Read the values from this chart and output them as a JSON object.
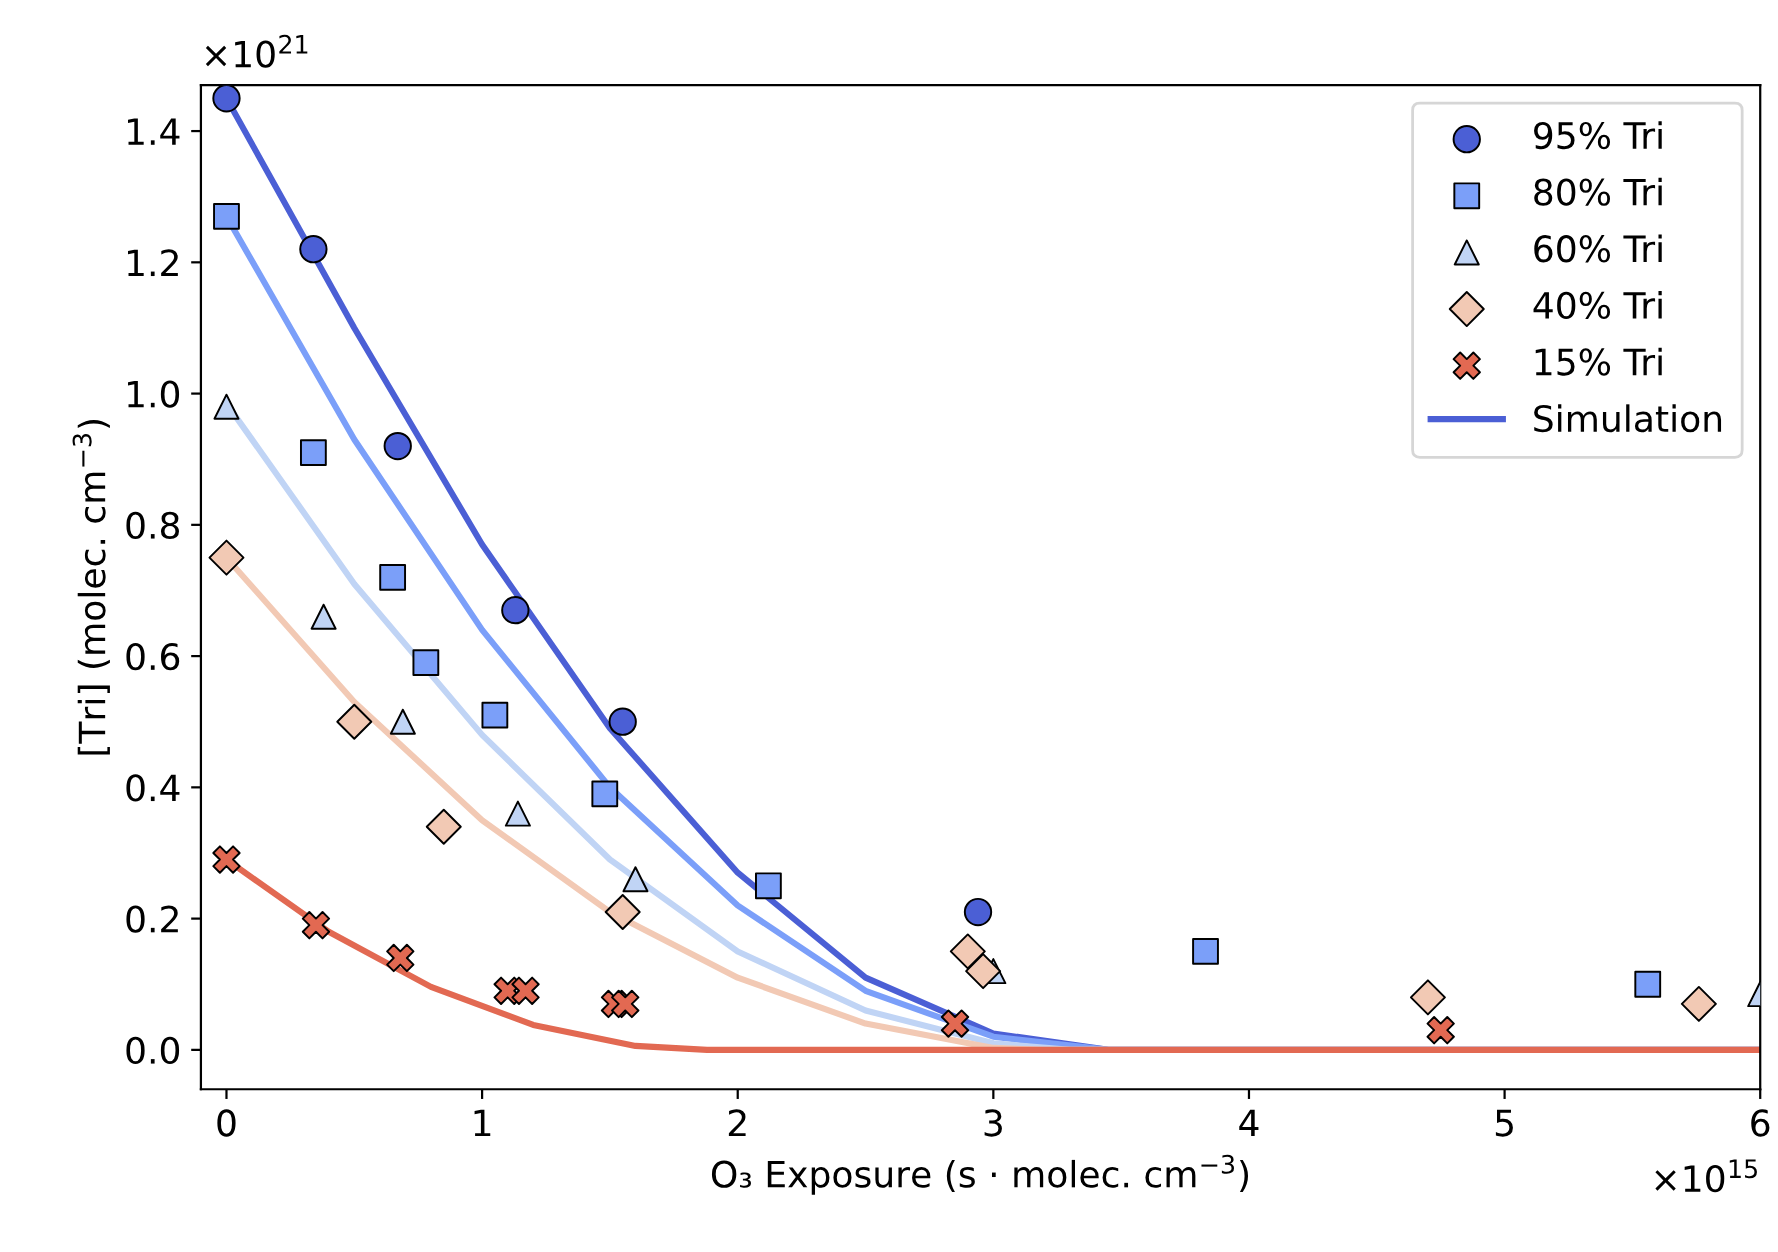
{
  "chart_data": {
    "type": "scatter",
    "xlabel": "O₃ Exposure (s · molec. cm$^{−3}$)",
    "ylabel": "[Tri] (molec. cm$^{−3}$)",
    "xlim": [
      -0.1,
      6
    ],
    "ylim": [
      -0.06,
      1.47
    ],
    "xticks": [
      0,
      1,
      2,
      3,
      4,
      5,
      6
    ],
    "yticks": [
      {
        "value": 0,
        "label": "0.0"
      },
      {
        "value": 0.2,
        "label": "0.2"
      },
      {
        "value": 0.4,
        "label": "0.4"
      },
      {
        "value": 0.6,
        "label": "0.6"
      },
      {
        "value": 0.8,
        "label": "0.8"
      },
      {
        "value": 1.0,
        "label": "1.0"
      },
      {
        "value": 1.2,
        "label": "1.2"
      },
      {
        "value": 1.4,
        "label": "1.4"
      }
    ],
    "grid": false,
    "legend": "top right",
    "annotations": [
      "×10$^{21}$",
      "×10$^{15}$"
    ],
    "series": [
      {
        "name": "95% Tri",
        "marker": "circle",
        "color": "#4b5fd5",
        "x": [
          0,
          0.34,
          0.67,
          1.13,
          1.55,
          2.94
        ],
        "values": [
          1.45,
          1.22,
          0.92,
          0.67,
          0.5,
          0.21
        ]
      },
      {
        "name": "80% Tri",
        "marker": "square",
        "color": "#7b9ff9",
        "x": [
          0,
          0.34,
          0.65,
          0.78,
          1.05,
          1.48,
          2.12,
          3.83,
          5.56
        ],
        "values": [
          1.27,
          0.91,
          0.72,
          0.59,
          0.51,
          0.39,
          0.25,
          0.15,
          0.1
        ]
      },
      {
        "name": "60% Tri",
        "marker": "triangle",
        "color": "#c0d4f5",
        "x": [
          0,
          0.38,
          0.69,
          1.14,
          1.6,
          3.0,
          6.0
        ],
        "values": [
          0.98,
          0.66,
          0.5,
          0.36,
          0.26,
          0.12,
          0.085
        ]
      },
      {
        "name": "40% Tri",
        "marker": "diamond",
        "color": "#f2c9b4",
        "x": [
          0,
          0.5,
          0.85,
          1.55,
          2.9,
          2.96,
          4.7,
          5.76
        ],
        "values": [
          0.75,
          0.5,
          0.34,
          0.21,
          0.15,
          0.12,
          0.08,
          0.07
        ]
      },
      {
        "name": "15% Tri",
        "marker": "cross",
        "color": "#e26952",
        "x": [
          0,
          0.35,
          0.68,
          1.1,
          1.17,
          1.52,
          1.56,
          2.85,
          4.75
        ],
        "values": [
          0.29,
          0.19,
          0.14,
          0.09,
          0.09,
          0.07,
          0.07,
          0.04,
          0.03
        ]
      },
      {
        "name": "Simulation",
        "type": "line",
        "line_style": "solid",
        "color": "#4b5fd5",
        "x": [
          0,
          0.5,
          1,
          1.5,
          2,
          2.5,
          3,
          3.45,
          6
        ],
        "values": [
          1.45,
          1.1,
          0.77,
          0.49,
          0.27,
          0.11,
          0.025,
          0,
          0
        ]
      },
      {
        "type": "line",
        "line_style": "solid",
        "color": "#7b9ff9",
        "x": [
          0,
          0.5,
          1,
          1.5,
          2,
          2.5,
          3,
          3.45,
          6
        ],
        "values": [
          1.27,
          0.93,
          0.64,
          0.4,
          0.22,
          0.09,
          0.02,
          0,
          0
        ]
      },
      {
        "type": "line",
        "line_style": "solid",
        "color": "#c0d4f5",
        "x": [
          0,
          0.5,
          1,
          1.5,
          2,
          2.5,
          3,
          3.3,
          6
        ],
        "values": [
          0.985,
          0.71,
          0.48,
          0.29,
          0.15,
          0.06,
          0.01,
          0,
          0
        ]
      },
      {
        "type": "line",
        "line_style": "solid",
        "color": "#f2c9b4",
        "x": [
          0,
          0.5,
          1,
          1.5,
          2,
          2.5,
          3,
          3.2,
          6
        ],
        "values": [
          0.75,
          0.53,
          0.35,
          0.21,
          0.11,
          0.04,
          0.003,
          0,
          0
        ]
      },
      {
        "type": "line",
        "line_style": "solid",
        "color": "#e26952",
        "x": [
          0,
          0.4,
          0.8,
          1.2,
          1.6,
          1.88,
          6
        ],
        "values": [
          0.29,
          0.18,
          0.096,
          0.038,
          0.006,
          0,
          0
        ]
      }
    ]
  }
}
